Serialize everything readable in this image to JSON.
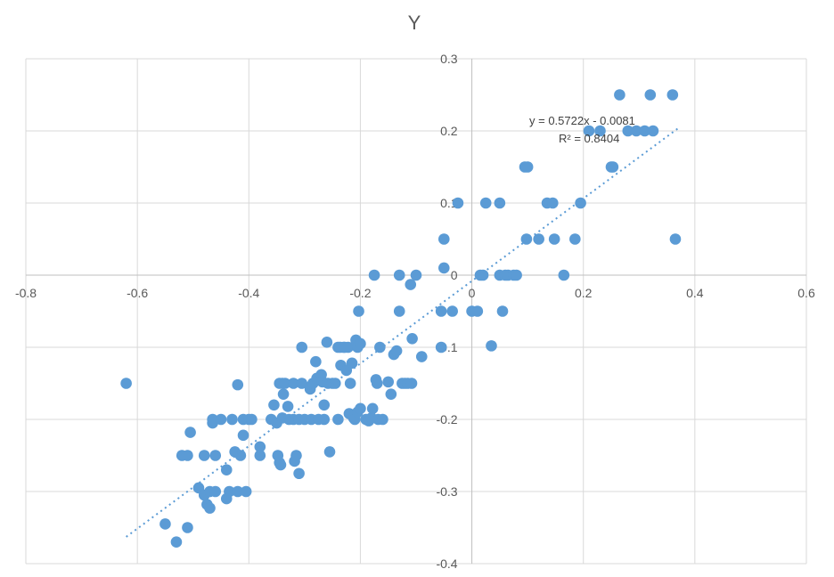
{
  "chart_data": {
    "type": "scatter",
    "title": "Y",
    "xlabel": "",
    "ylabel": "",
    "xlim": [
      -0.8,
      0.6
    ],
    "ylim": [
      -0.4,
      0.3
    ],
    "x_ticks": [
      "-0.8",
      "-0.6",
      "-0.4",
      "-0.2",
      "0",
      "0.2",
      "0.4",
      "0.6"
    ],
    "y_ticks": [
      "0.3",
      "0.2",
      "0.1",
      "0",
      "-0.1",
      "-0.2",
      "-0.3",
      "-0.4"
    ],
    "grid": true,
    "legend": "none",
    "color": "#5b9bd5",
    "trendline": {
      "equation": "y = 0.5722x - 0.0081",
      "r_squared": "R² = 0.8404",
      "slope": 0.5722,
      "intercept": -0.0081,
      "x_range": [
        -0.62,
        0.37
      ]
    },
    "points": [
      [
        -0.62,
        -0.15
      ],
      [
        -0.55,
        -0.345
      ],
      [
        -0.53,
        -0.37
      ],
      [
        -0.52,
        -0.25
      ],
      [
        -0.51,
        -0.25
      ],
      [
        -0.51,
        -0.35
      ],
      [
        -0.505,
        -0.218
      ],
      [
        -0.49,
        -0.295
      ],
      [
        -0.48,
        -0.25
      ],
      [
        -0.48,
        -0.305
      ],
      [
        -0.475,
        -0.318
      ],
      [
        -0.47,
        -0.3
      ],
      [
        -0.47,
        -0.323
      ],
      [
        -0.465,
        -0.205
      ],
      [
        -0.465,
        -0.2
      ],
      [
        -0.46,
        -0.3
      ],
      [
        -0.46,
        -0.25
      ],
      [
        -0.45,
        -0.2
      ],
      [
        -0.44,
        -0.27
      ],
      [
        -0.44,
        -0.31
      ],
      [
        -0.435,
        -0.3
      ],
      [
        -0.43,
        -0.2
      ],
      [
        -0.425,
        -0.245
      ],
      [
        -0.42,
        -0.3
      ],
      [
        -0.42,
        -0.152
      ],
      [
        -0.415,
        -0.25
      ],
      [
        -0.41,
        -0.2
      ],
      [
        -0.41,
        -0.222
      ],
      [
        -0.405,
        -0.3
      ],
      [
        -0.4,
        -0.2
      ],
      [
        -0.395,
        -0.2
      ],
      [
        -0.38,
        -0.238
      ],
      [
        -0.38,
        -0.25
      ],
      [
        -0.36,
        -0.2
      ],
      [
        -0.355,
        -0.18
      ],
      [
        -0.35,
        -0.205
      ],
      [
        -0.348,
        -0.25
      ],
      [
        -0.345,
        -0.26
      ],
      [
        -0.345,
        -0.15
      ],
      [
        -0.343,
        -0.263
      ],
      [
        -0.34,
        -0.15
      ],
      [
        -0.34,
        -0.198
      ],
      [
        -0.338,
        -0.165
      ],
      [
        -0.335,
        -0.15
      ],
      [
        -0.33,
        -0.182
      ],
      [
        -0.328,
        -0.2
      ],
      [
        -0.32,
        -0.15
      ],
      [
        -0.32,
        -0.2
      ],
      [
        -0.318,
        -0.258
      ],
      [
        -0.315,
        -0.25
      ],
      [
        -0.31,
        -0.275
      ],
      [
        -0.31,
        -0.2
      ],
      [
        -0.305,
        -0.1
      ],
      [
        -0.305,
        -0.15
      ],
      [
        -0.3,
        -0.2
      ],
      [
        -0.29,
        -0.158
      ],
      [
        -0.29,
        -0.155
      ],
      [
        -0.288,
        -0.2
      ],
      [
        -0.285,
        -0.15
      ],
      [
        -0.28,
        -0.12
      ],
      [
        -0.278,
        -0.143
      ],
      [
        -0.275,
        -0.2
      ],
      [
        -0.27,
        -0.138
      ],
      [
        -0.268,
        -0.148
      ],
      [
        -0.265,
        -0.18
      ],
      [
        -0.265,
        -0.2
      ],
      [
        -0.26,
        -0.093
      ],
      [
        -0.258,
        -0.15
      ],
      [
        -0.255,
        -0.245
      ],
      [
        -0.25,
        -0.15
      ],
      [
        -0.245,
        -0.15
      ],
      [
        -0.24,
        -0.1
      ],
      [
        -0.24,
        -0.2
      ],
      [
        -0.236,
        -0.1
      ],
      [
        -0.235,
        -0.125
      ],
      [
        -0.23,
        -0.1
      ],
      [
        -0.228,
        -0.1
      ],
      [
        -0.225,
        -0.132
      ],
      [
        -0.222,
        -0.1
      ],
      [
        -0.22,
        -0.192
      ],
      [
        -0.218,
        -0.15
      ],
      [
        -0.215,
        -0.122
      ],
      [
        -0.212,
        -0.198
      ],
      [
        -0.21,
        -0.2
      ],
      [
        -0.208,
        -0.09
      ],
      [
        -0.205,
        -0.1
      ],
      [
        -0.205,
        -0.19
      ],
      [
        -0.203,
        -0.05
      ],
      [
        -0.2,
        -0.185
      ],
      [
        -0.2,
        -0.095
      ],
      [
        -0.19,
        -0.2
      ],
      [
        -0.185,
        -0.202
      ],
      [
        -0.18,
        -0.198
      ],
      [
        -0.178,
        -0.185
      ],
      [
        -0.175,
        0.0
      ],
      [
        -0.172,
        -0.145
      ],
      [
        -0.17,
        -0.15
      ],
      [
        -0.168,
        -0.2
      ],
      [
        -0.165,
        -0.1
      ],
      [
        -0.16,
        -0.2
      ],
      [
        -0.15,
        -0.148
      ],
      [
        -0.145,
        -0.165
      ],
      [
        -0.14,
        -0.11
      ],
      [
        -0.135,
        -0.105
      ],
      [
        -0.13,
        -0.05
      ],
      [
        -0.13,
        0.0
      ],
      [
        -0.125,
        -0.15
      ],
      [
        -0.12,
        -0.15
      ],
      [
        -0.115,
        -0.15
      ],
      [
        -0.11,
        -0.013
      ],
      [
        -0.108,
        -0.15
      ],
      [
        -0.107,
        -0.088
      ],
      [
        -0.1,
        0.0
      ],
      [
        -0.09,
        -0.113
      ],
      [
        -0.055,
        -0.05
      ],
      [
        -0.055,
        -0.1
      ],
      [
        -0.05,
        0.05
      ],
      [
        -0.05,
        0.01
      ],
      [
        -0.035,
        -0.05
      ],
      [
        -0.025,
        0.1
      ],
      [
        0.0,
        -0.05
      ],
      [
        0.01,
        -0.05
      ],
      [
        0.015,
        0.0
      ],
      [
        0.02,
        0.0
      ],
      [
        0.025,
        0.1
      ],
      [
        0.035,
        -0.098
      ],
      [
        0.05,
        0.1
      ],
      [
        0.05,
        0.0
      ],
      [
        0.055,
        -0.05
      ],
      [
        0.06,
        0.0
      ],
      [
        0.065,
        0.0
      ],
      [
        0.075,
        0.0
      ],
      [
        0.08,
        0.0
      ],
      [
        0.095,
        0.15
      ],
      [
        0.098,
        0.05
      ],
      [
        0.1,
        0.15
      ],
      [
        0.12,
        0.05
      ],
      [
        0.135,
        0.1
      ],
      [
        0.145,
        0.1
      ],
      [
        0.148,
        0.05
      ],
      [
        0.165,
        0.0
      ],
      [
        0.185,
        0.05
      ],
      [
        0.195,
        0.1
      ],
      [
        0.21,
        0.2
      ],
      [
        0.23,
        0.2
      ],
      [
        0.25,
        0.15
      ],
      [
        0.253,
        0.15
      ],
      [
        0.265,
        0.25
      ],
      [
        0.28,
        0.2
      ],
      [
        0.295,
        0.2
      ],
      [
        0.31,
        0.2
      ],
      [
        0.32,
        0.25
      ],
      [
        0.325,
        0.2
      ],
      [
        0.36,
        0.25
      ],
      [
        0.365,
        0.05
      ]
    ]
  }
}
